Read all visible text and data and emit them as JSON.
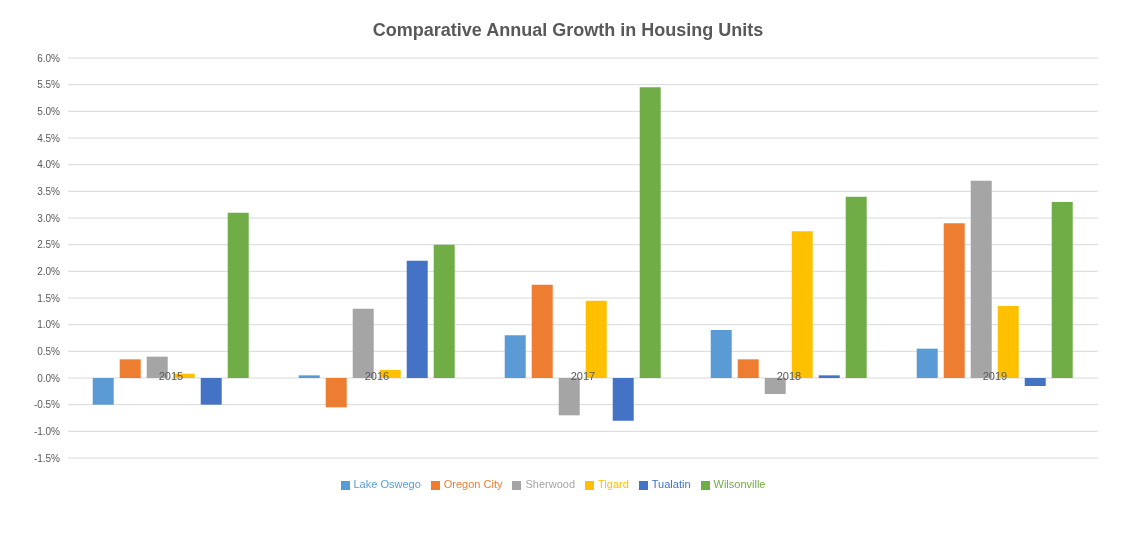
{
  "chart_data": {
    "type": "bar",
    "title": "Comparative Annual Growth in Housing Units",
    "categories": [
      "2015",
      "2016",
      "2017",
      "2018",
      "2019"
    ],
    "series": [
      {
        "name": "Lake Oswego",
        "color": "#5b9bd5",
        "values": [
          -0.5,
          0.05,
          0.8,
          0.9,
          0.55
        ]
      },
      {
        "name": "Oregon City",
        "color": "#ed7d31",
        "values": [
          0.35,
          -0.55,
          1.75,
          0.35,
          2.9
        ]
      },
      {
        "name": "Sherwood",
        "color": "#a5a5a5",
        "values": [
          0.4,
          1.3,
          -0.7,
          -0.3,
          3.7
        ]
      },
      {
        "name": "Tigard",
        "color": "#ffc000",
        "values": [
          0.08,
          0.15,
          1.45,
          2.75,
          1.35
        ]
      },
      {
        "name": "Tualatin",
        "color": "#4472c4",
        "values": [
          -0.5,
          2.2,
          -0.8,
          0.05,
          -0.15
        ]
      },
      {
        "name": "Wilsonville",
        "color": "#70ad47",
        "values": [
          3.1,
          2.5,
          5.45,
          3.4,
          3.3
        ]
      }
    ],
    "ylim": [
      -1.5,
      6
    ],
    "yticks": [
      {
        "value": -1.5,
        "label": "-1.5%"
      },
      {
        "value": -1,
        "label": "-1.0%"
      },
      {
        "value": -0.5,
        "label": "-0.5%"
      },
      {
        "value": 0,
        "label": "0.0%"
      },
      {
        "value": 0.5,
        "label": "0.5%"
      },
      {
        "value": 1,
        "label": "1.0%"
      },
      {
        "value": 1.5,
        "label": "1.5%"
      },
      {
        "value": 2,
        "label": "2.0%"
      },
      {
        "value": 2.5,
        "label": "2.5%"
      },
      {
        "value": 3,
        "label": "3.0%"
      },
      {
        "value": 3.5,
        "label": "3.5%"
      },
      {
        "value": 4,
        "label": "4.0%"
      },
      {
        "value": 4.5,
        "label": "4.5%"
      },
      {
        "value": 5,
        "label": "5.0%"
      },
      {
        "value": 5.5,
        "label": "5.5%"
      },
      {
        "value": 6,
        "label": "6.0%"
      }
    ],
    "grid": "y",
    "legend": "bottom"
  }
}
